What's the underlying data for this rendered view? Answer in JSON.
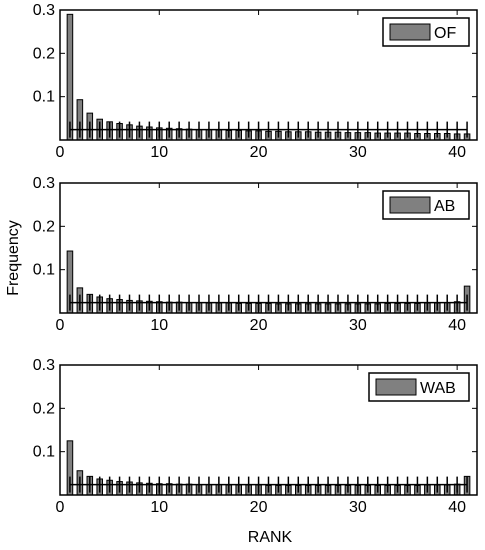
{
  "figure": {
    "ylabel": "Frequency",
    "xlabel": "RANK"
  },
  "colors": {
    "bar_fill": "#808080",
    "bar_stroke": "#000000",
    "reference_line": "#000000",
    "axes": "#000000",
    "background": "#ffffff"
  },
  "chart_data": [
    {
      "type": "bar",
      "legend": "OF",
      "legend_position": "top-right",
      "grid": false,
      "xlim": [
        0,
        42
      ],
      "ylim": [
        0,
        0.3
      ],
      "xticks": [
        10,
        20,
        30,
        40
      ],
      "xtick_labels": [
        "10",
        "20",
        "30",
        "40"
      ],
      "yticks": [
        0.1,
        0.2,
        0.3
      ],
      "ytick_labels": [
        "0.1",
        "0.2",
        "0.3"
      ],
      "reference_level": 0.024,
      "x": [
        1,
        2,
        3,
        4,
        5,
        6,
        7,
        8,
        9,
        10,
        11,
        12,
        13,
        14,
        15,
        16,
        17,
        18,
        19,
        20,
        21,
        22,
        23,
        24,
        25,
        26,
        27,
        28,
        29,
        30,
        31,
        32,
        33,
        34,
        35,
        36,
        37,
        38,
        39,
        40,
        41
      ],
      "values": [
        0.29,
        0.093,
        0.062,
        0.048,
        0.042,
        0.038,
        0.035,
        0.032,
        0.03,
        0.028,
        0.027,
        0.026,
        0.025,
        0.024,
        0.024,
        0.023,
        0.022,
        0.022,
        0.021,
        0.021,
        0.02,
        0.02,
        0.019,
        0.019,
        0.019,
        0.018,
        0.018,
        0.018,
        0.017,
        0.017,
        0.017,
        0.016,
        0.016,
        0.016,
        0.016,
        0.015,
        0.015,
        0.015,
        0.015,
        0.014,
        0.014
      ]
    },
    {
      "type": "bar",
      "legend": "AB",
      "legend_position": "top-right",
      "grid": false,
      "xlim": [
        0,
        42
      ],
      "ylim": [
        0,
        0.3
      ],
      "xticks": [
        10,
        20,
        30,
        40
      ],
      "xtick_labels": [
        "10",
        "20",
        "30",
        "40"
      ],
      "yticks": [
        0.1,
        0.2,
        0.3
      ],
      "ytick_labels": [
        "0.1",
        "0.2",
        "0.3"
      ],
      "reference_level": 0.024,
      "x": [
        1,
        2,
        3,
        4,
        5,
        6,
        7,
        8,
        9,
        10,
        11,
        12,
        13,
        14,
        15,
        16,
        17,
        18,
        19,
        20,
        21,
        22,
        23,
        24,
        25,
        26,
        27,
        28,
        29,
        30,
        31,
        32,
        33,
        34,
        35,
        36,
        37,
        38,
        39,
        40,
        41
      ],
      "values": [
        0.143,
        0.058,
        0.043,
        0.037,
        0.033,
        0.031,
        0.029,
        0.028,
        0.027,
        0.026,
        0.025,
        0.025,
        0.024,
        0.024,
        0.023,
        0.023,
        0.023,
        0.022,
        0.022,
        0.022,
        0.022,
        0.021,
        0.021,
        0.021,
        0.021,
        0.021,
        0.021,
        0.021,
        0.021,
        0.021,
        0.021,
        0.021,
        0.022,
        0.022,
        0.022,
        0.022,
        0.023,
        0.023,
        0.024,
        0.026,
        0.062
      ]
    },
    {
      "type": "bar",
      "legend": "WAB",
      "legend_position": "top-right",
      "grid": false,
      "xlim": [
        0,
        42
      ],
      "ylim": [
        0,
        0.3
      ],
      "xticks": [
        10,
        20,
        30,
        40
      ],
      "xtick_labels": [
        "10",
        "20",
        "30",
        "40"
      ],
      "yticks": [
        0.1,
        0.2,
        0.3
      ],
      "ytick_labels": [
        "0.1",
        "0.2",
        "0.3"
      ],
      "reference_level": 0.024,
      "x": [
        1,
        2,
        3,
        4,
        5,
        6,
        7,
        8,
        9,
        10,
        11,
        12,
        13,
        14,
        15,
        16,
        17,
        18,
        19,
        20,
        21,
        22,
        23,
        24,
        25,
        26,
        27,
        28,
        29,
        30,
        31,
        32,
        33,
        34,
        35,
        36,
        37,
        38,
        39,
        40,
        41
      ],
      "values": [
        0.125,
        0.056,
        0.043,
        0.037,
        0.034,
        0.031,
        0.03,
        0.028,
        0.027,
        0.026,
        0.026,
        0.025,
        0.025,
        0.024,
        0.024,
        0.024,
        0.023,
        0.023,
        0.023,
        0.023,
        0.022,
        0.022,
        0.022,
        0.022,
        0.022,
        0.022,
        0.022,
        0.022,
        0.022,
        0.022,
        0.022,
        0.022,
        0.022,
        0.022,
        0.022,
        0.022,
        0.023,
        0.023,
        0.023,
        0.025,
        0.043
      ]
    }
  ]
}
